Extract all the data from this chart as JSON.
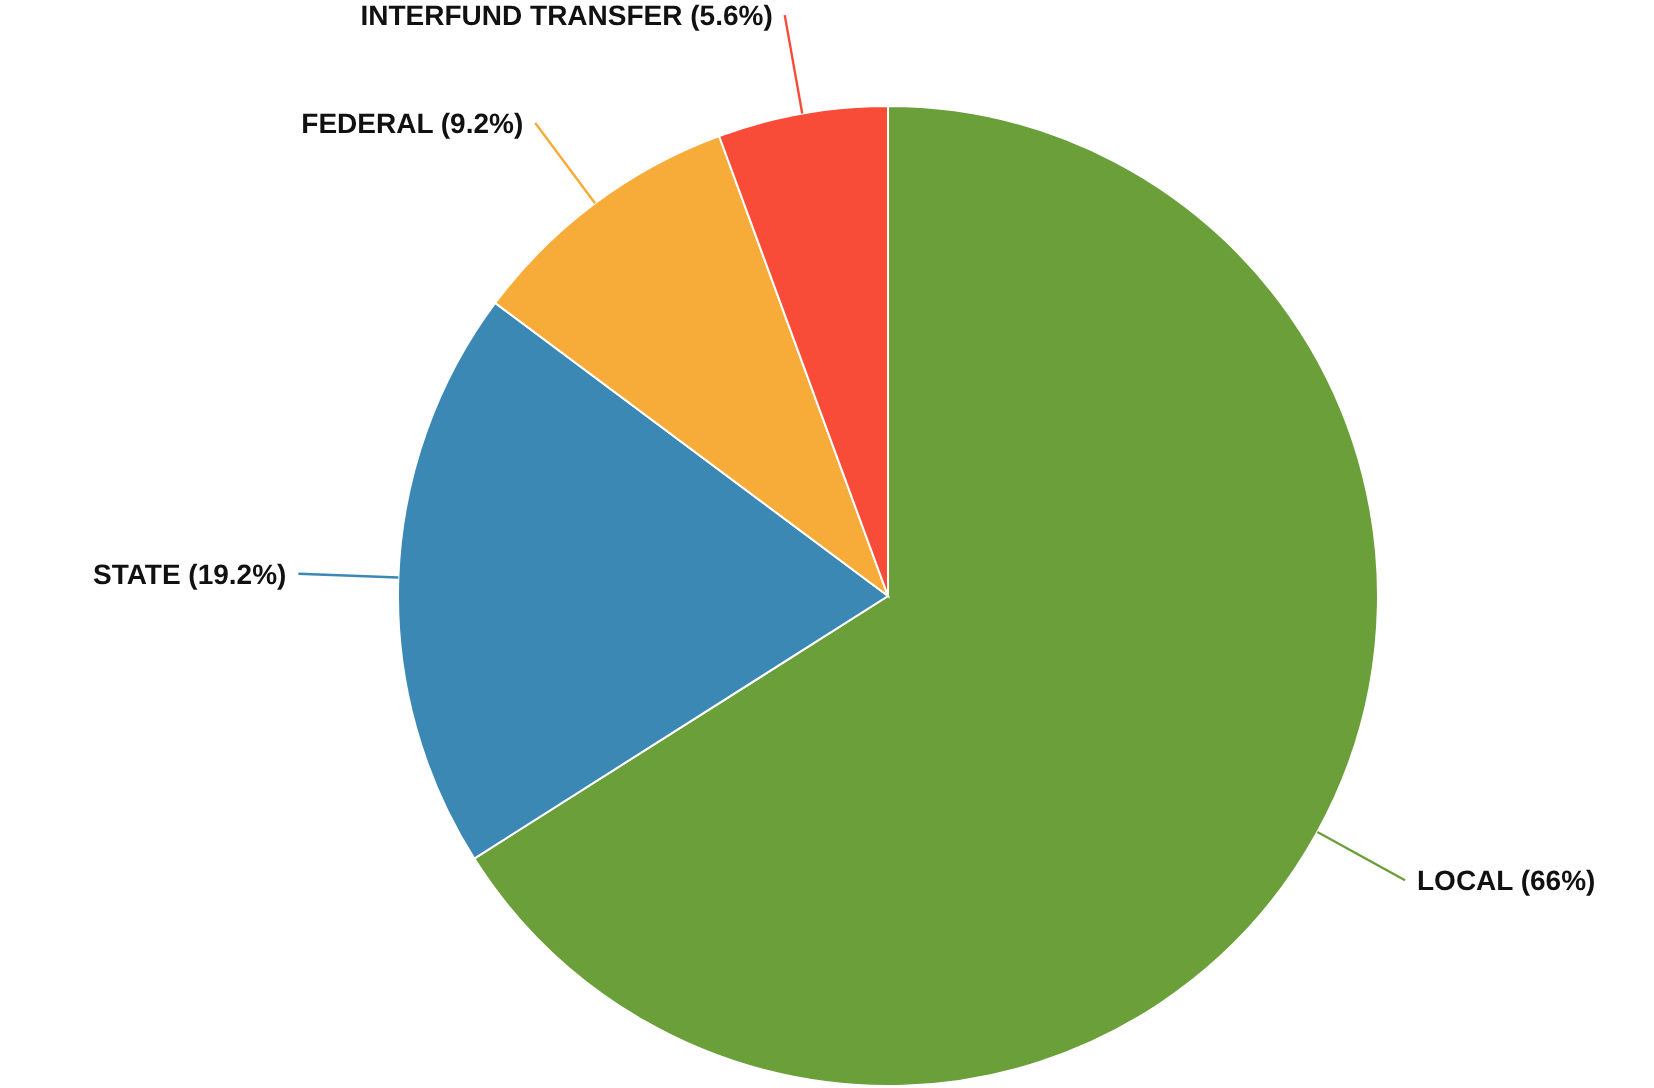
{
  "chart_data": {
    "type": "pie",
    "categories": [
      "LOCAL",
      "STATE",
      "FEDERAL",
      "INTERFUND TRANSFER"
    ],
    "values": [
      66,
      19.2,
      9.2,
      5.6
    ],
    "colors": [
      "#6a9f3a",
      "#3b88b5",
      "#f7ab38",
      "#f84c38"
    ],
    "value_labels": [
      "(66%)",
      "(19.2%)",
      "(9.2%)",
      "(5.6%)"
    ]
  }
}
